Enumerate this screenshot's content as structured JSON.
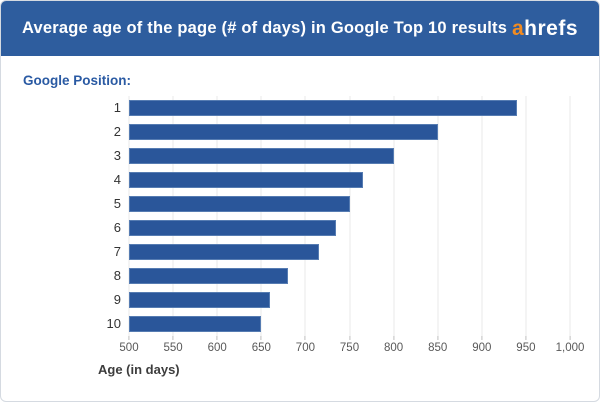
{
  "header": {
    "title": "Average age of the page (# of days) in Google Top 10 results",
    "logo": {
      "accent": "a",
      "rest": "hrefs"
    }
  },
  "chart": {
    "y_axis_title": "Google Position:",
    "x_axis_label": "Age (in days)"
  },
  "chart_data": {
    "type": "bar",
    "orientation": "horizontal",
    "title": "Average age of the page (# of days) in Google Top 10 results",
    "categories": [
      "1",
      "2",
      "3",
      "4",
      "5",
      "6",
      "7",
      "8",
      "9",
      "10"
    ],
    "values": [
      940,
      850,
      800,
      765,
      750,
      735,
      715,
      680,
      660,
      650
    ],
    "xlabel": "Age (in days)",
    "ylabel": "Google Position:",
    "xlim": [
      500,
      1000
    ],
    "x_ticks": [
      500,
      550,
      600,
      650,
      700,
      750,
      800,
      850,
      900,
      950,
      1000
    ],
    "x_tick_labels": [
      "500",
      "550",
      "600",
      "650",
      "700",
      "750",
      "800",
      "850",
      "900",
      "950",
      "1,000"
    ],
    "grid": true,
    "legend": false
  },
  "colors": {
    "header_bg": "#2e5d9e",
    "title_text": "#ffffff",
    "logo_accent": "#f18b21",
    "logo_rest": "#ffffff",
    "bar_fill": "#2a569a",
    "bar_border": "#567cb2",
    "gridline": "#e8e8e8",
    "axis_title_blue": "#2a5aa3",
    "tick_text": "#595959"
  }
}
